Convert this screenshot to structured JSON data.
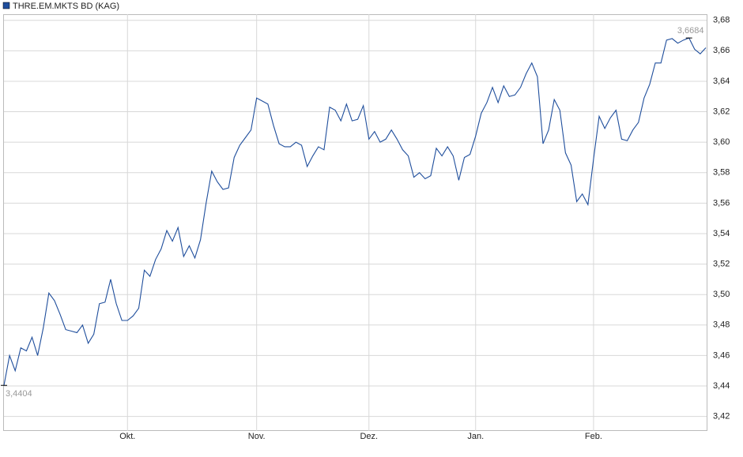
{
  "chart_data": {
    "type": "line",
    "series": [
      {
        "name": "THRE.EM.MKTS BD (KAG)",
        "color": "#1f4e9c",
        "values": [
          3.4404,
          3.46,
          3.45,
          3.465,
          3.463,
          3.472,
          3.46,
          3.478,
          3.501,
          3.496,
          3.487,
          3.477,
          3.476,
          3.475,
          3.48,
          3.468,
          3.474,
          3.494,
          3.495,
          3.51,
          3.494,
          3.483,
          3.483,
          3.486,
          3.491,
          3.516,
          3.512,
          3.523,
          3.53,
          3.542,
          3.535,
          3.544,
          3.525,
          3.532,
          3.524,
          3.536,
          3.56,
          3.581,
          3.574,
          3.569,
          3.57,
          3.59,
          3.598,
          3.603,
          3.608,
          3.629,
          3.627,
          3.625,
          3.611,
          3.599,
          3.597,
          3.597,
          3.6,
          3.598,
          3.584,
          3.591,
          3.597,
          3.595,
          3.623,
          3.621,
          3.614,
          3.625,
          3.614,
          3.615,
          3.624,
          3.602,
          3.607,
          3.6,
          3.602,
          3.608,
          3.602,
          3.595,
          3.591,
          3.577,
          3.58,
          3.576,
          3.578,
          3.596,
          3.591,
          3.597,
          3.591,
          3.575,
          3.59,
          3.592,
          3.604,
          3.619,
          3.626,
          3.636,
          3.626,
          3.637,
          3.63,
          3.631,
          3.636,
          3.645,
          3.652,
          3.643,
          3.599,
          3.608,
          3.628,
          3.621,
          3.593,
          3.585,
          3.561,
          3.566,
          3.559,
          3.589,
          3.617,
          3.609,
          3.616,
          3.621,
          3.602,
          3.601,
          3.608,
          3.613,
          3.629,
          3.638,
          3.652,
          3.652,
          3.667,
          3.668,
          3.665,
          3.667,
          3.6684,
          3.661,
          3.658,
          3.662
        ],
        "value_labels": {
          "0": "3,4404",
          "122": "3,6684"
        }
      }
    ],
    "x": [
      0,
      1,
      2,
      3,
      4,
      5,
      6,
      7,
      8,
      9,
      10,
      11,
      12,
      13,
      14,
      15,
      16,
      17,
      18,
      19,
      20,
      21,
      22,
      23,
      24,
      25,
      26,
      27,
      28,
      29,
      30,
      31,
      32,
      33,
      34,
      35,
      36,
      37,
      38,
      39,
      40,
      41,
      42,
      43,
      44,
      45,
      46,
      47,
      48,
      49,
      50,
      51,
      52,
      53,
      54,
      55,
      56,
      57,
      58,
      59,
      60,
      61,
      62,
      63,
      64,
      65,
      66,
      67,
      68,
      69,
      70,
      71,
      72,
      73,
      74,
      75,
      76,
      77,
      78,
      79,
      80,
      81,
      82,
      83,
      84,
      85,
      86,
      87,
      88,
      89,
      90,
      91,
      92,
      93,
      94,
      95,
      96,
      97,
      98,
      99,
      100,
      101,
      102,
      103,
      104,
      105,
      106,
      107,
      108,
      109,
      110,
      111,
      112,
      113,
      114,
      115,
      116,
      117,
      118,
      119,
      120,
      121,
      122,
      123,
      124,
      125
    ],
    "xlim": [
      0,
      125
    ],
    "xticks": [
      {
        "value": 22,
        "label": "Okt."
      },
      {
        "value": 45,
        "label": "Nov."
      },
      {
        "value": 65,
        "label": "Dez."
      },
      {
        "value": 84,
        "label": "Jan."
      },
      {
        "value": 105,
        "label": "Feb."
      }
    ],
    "ylim": [
      3.411,
      3.684
    ],
    "yticks": [
      {
        "value": 3.42,
        "label": "3,42"
      },
      {
        "value": 3.44,
        "label": "3,44"
      },
      {
        "value": 3.46,
        "label": "3,46"
      },
      {
        "value": 3.48,
        "label": "3,48"
      },
      {
        "value": 3.5,
        "label": "3,50"
      },
      {
        "value": 3.52,
        "label": "3,52"
      },
      {
        "value": 3.54,
        "label": "3,54"
      },
      {
        "value": 3.56,
        "label": "3,56"
      },
      {
        "value": 3.58,
        "label": "3,58"
      },
      {
        "value": 3.6,
        "label": "3,60"
      },
      {
        "value": 3.62,
        "label": "3,62"
      },
      {
        "value": 3.64,
        "label": "3,64"
      },
      {
        "value": 3.66,
        "label": "3,66"
      },
      {
        "value": 3.68,
        "label": "3,68"
      }
    ],
    "grid": true,
    "legend": "top-left"
  }
}
